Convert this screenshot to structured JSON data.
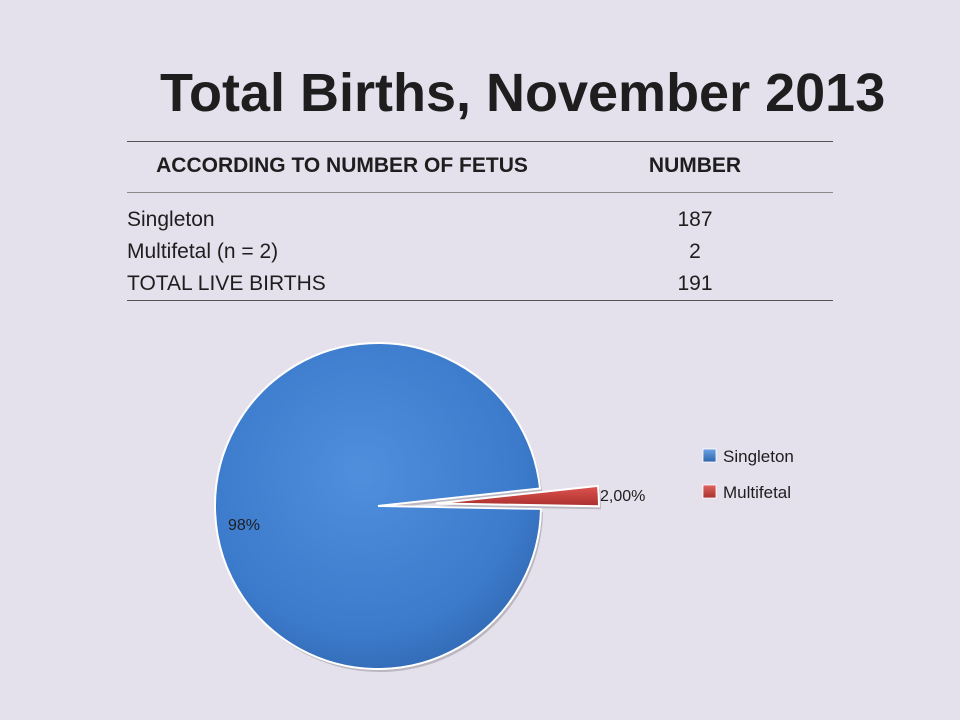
{
  "title": "Total Births, November 2013",
  "table": {
    "headers": [
      "ACCORDING TO NUMBER OF FETUS",
      "NUMBER"
    ],
    "rows": [
      [
        "Singleton",
        "187"
      ],
      [
        "Multifetal (n = 2)",
        "2"
      ],
      [
        "TOTAL LIVE BIRTHS",
        "191"
      ]
    ]
  },
  "chart_data": {
    "type": "pie",
    "title": "",
    "categories": [
      "Singleton",
      "Multifetal"
    ],
    "values": [
      98,
      2
    ],
    "data_labels": [
      "98%",
      "2,00%"
    ],
    "colors": [
      "#3d7cc9",
      "#c83e3b"
    ],
    "exploded": [
      false,
      true
    ],
    "legend_position": "right"
  }
}
